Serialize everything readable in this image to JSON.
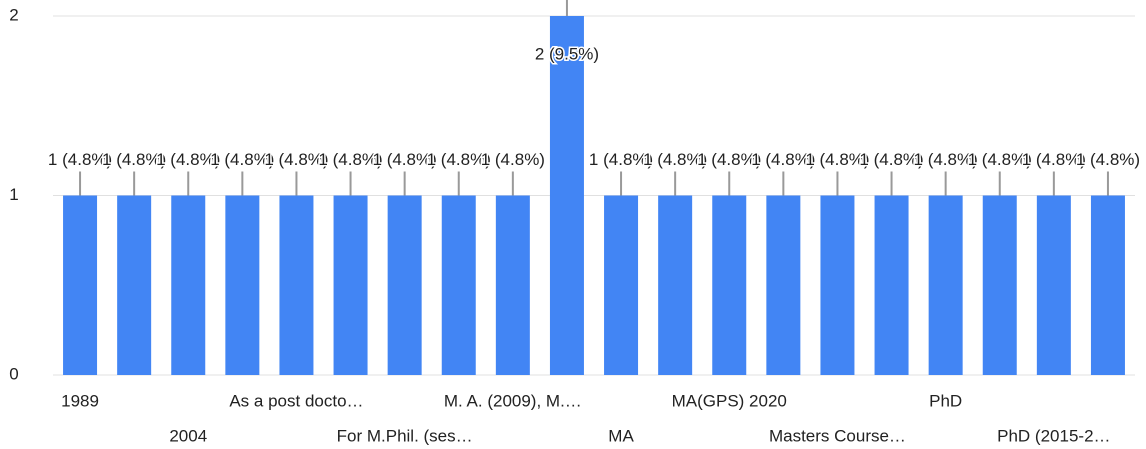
{
  "chart_data": {
    "type": "bar",
    "categories": [
      "1989",
      null,
      "2004",
      null,
      "As a post docto…",
      null,
      "For M.Phil. (ses…",
      null,
      "M. A. (2009), M.…",
      null,
      "MA",
      null,
      "MA(GPS) 2020",
      null,
      "Masters Course…",
      null,
      "PhD",
      null,
      "PhD (2015-2…",
      null
    ],
    "values": [
      1,
      1,
      1,
      1,
      1,
      1,
      1,
      1,
      1,
      2,
      1,
      1,
      1,
      1,
      1,
      1,
      1,
      1,
      1,
      1
    ],
    "value_labels": [
      "1 (4.8%)",
      "1 (4.8%)",
      "1 (4.8%)",
      "1 (4.8%)",
      "1 (4.8%)",
      "1 (4.8%)",
      "1 (4.8%)",
      "1 (4.8%)",
      "1 (4.8%)",
      "2 (9.5%)",
      "1 (4.8%)",
      "1 (4.8%)",
      "1 (4.8%)",
      "1 (4.8%)",
      "1 (4.8%)",
      "1 (4.8%)",
      "1 (4.8%)",
      "1 (4.8%)",
      "1 (4.8%)",
      "1 (4.8%)"
    ],
    "color": "#4285f4",
    "ylim": [
      0,
      2
    ],
    "yticks": [
      0,
      1,
      2
    ],
    "grid": true
  }
}
